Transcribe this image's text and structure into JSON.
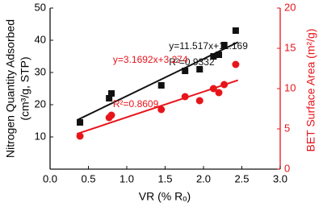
{
  "chart_data": {
    "type": "scatter",
    "xlabel": "VR (% Rₒ)",
    "ylabel": [
      "Nitrogen Quantity Adsorbed",
      "(cm³/g, STP)"
    ],
    "y2label": "BET Surface Area (m²/g)",
    "xlim": [
      0,
      3
    ],
    "xticks": [
      {
        "value": 0,
        "label": "0.0"
      },
      {
        "value": 0.5,
        "label": "0.5"
      },
      {
        "value": 1,
        "label": "1.0"
      },
      {
        "value": 1.5,
        "label": "1.5"
      },
      {
        "value": 2,
        "label": "2.0"
      },
      {
        "value": 2.5,
        "label": "2.5"
      },
      {
        "value": 3,
        "label": "3.0"
      }
    ],
    "ylim": [
      0,
      50
    ],
    "yticks": [
      10,
      20,
      30,
      40,
      50
    ],
    "y2lim": [
      0,
      20
    ],
    "y2ticks": [
      0,
      5,
      10,
      15,
      20
    ],
    "series": [
      {
        "marker": "square",
        "color": "#111111",
        "axis": "y",
        "x": [
          0.39,
          0.77,
          0.8,
          1.45,
          1.76,
          1.95,
          2.13,
          2.2,
          2.27,
          2.42
        ],
        "values": [
          14.5,
          22,
          23.5,
          26,
          30.5,
          31,
          35,
          35.5,
          38.5,
          43
        ]
      },
      {
        "marker": "circle",
        "color": "#e8141b",
        "axis": "y2",
        "x": [
          0.39,
          0.77,
          0.8,
          1.45,
          1.76,
          1.95,
          2.13,
          2.2,
          2.27,
          2.42
        ],
        "values": [
          4.1,
          6.4,
          6.7,
          7.4,
          9,
          8.5,
          10,
          9.5,
          10.5,
          13
        ]
      }
    ],
    "trendlines": [
      {
        "color": "#111111",
        "axis": "y",
        "x": [
          0.35,
          2.45
        ],
        "values": [
          15.2,
          39.4
        ]
      },
      {
        "color": "#e8141b",
        "axis": "y2",
        "x": [
          0.35,
          2.45
        ],
        "values": [
          4.38,
          11.04
        ]
      }
    ],
    "annotations": [
      {
        "text": "y=11.517x+11.169",
        "color": "#111111",
        "x": 1.55,
        "y": 38
      },
      {
        "text": "R²=0.9332",
        "color": "#111111",
        "x": 1.55,
        "y": 33
      },
      {
        "text": "y=3.1692x+3.274",
        "color": "#e8141b",
        "x": 0.82,
        "y": 13.5
      },
      {
        "text": "R²=0.8609",
        "color": "#e8141b",
        "x": 0.82,
        "y": 8
      }
    ]
  }
}
